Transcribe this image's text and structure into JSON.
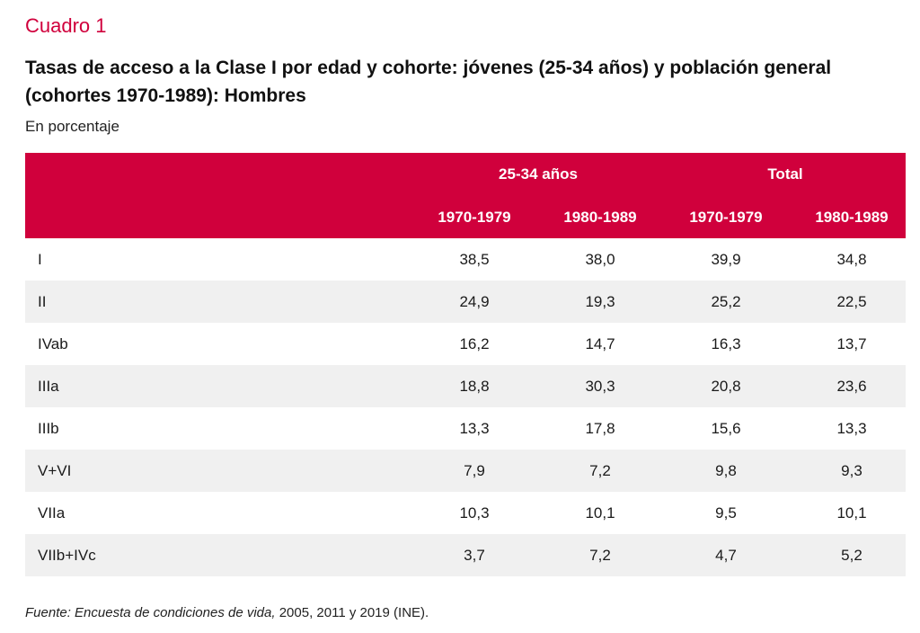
{
  "kicker": "Cuadro 1",
  "title": "Tasas de acceso a la Clase I por edad y cohorte: jóvenes (25-34 años) y población general (cohortes 1970-1989): Hombres",
  "subtitle": "En porcentaje",
  "source_italic": "Fuente: Encuesta de condiciones de vida,",
  "source_rest": " 2005, 2011 y 2019 (INE).",
  "chart_data": {
    "type": "table",
    "groups": [
      "25-34 años",
      "Total"
    ],
    "columns": [
      "1970-1979",
      "1980-1989",
      "1970-1979",
      "1980-1989"
    ],
    "rows": [
      {
        "label": "I",
        "values": [
          "38,5",
          "38,0",
          "39,9",
          "34,8"
        ]
      },
      {
        "label": "II",
        "values": [
          "24,9",
          "19,3",
          "25,2",
          "22,5"
        ]
      },
      {
        "label": "IVab",
        "values": [
          "16,2",
          "14,7",
          "16,3",
          "13,7"
        ]
      },
      {
        "label": "IIIa",
        "values": [
          "18,8",
          "30,3",
          "20,8",
          "23,6"
        ]
      },
      {
        "label": "IIIb",
        "values": [
          "13,3",
          "17,8",
          "15,6",
          "13,3"
        ]
      },
      {
        "label": "V+VI",
        "values": [
          "7,9",
          "7,2",
          "9,8",
          "9,3"
        ]
      },
      {
        "label": "VIIa",
        "values": [
          "10,3",
          "10,1",
          "9,5",
          "10,1"
        ]
      },
      {
        "label": "VIIb+IVc",
        "values": [
          "3,7",
          "7,2",
          "4,7",
          "5,2"
        ]
      }
    ]
  },
  "colors": {
    "accent": "#d0003c",
    "row_shade": "#f0f0f0"
  }
}
